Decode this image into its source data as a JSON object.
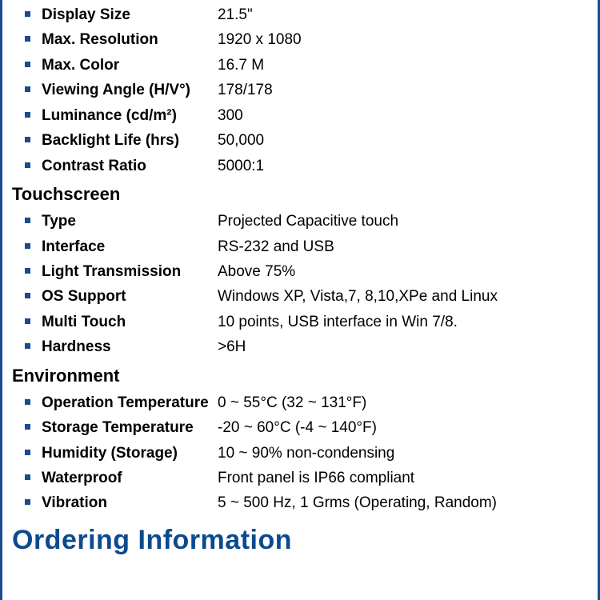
{
  "colors": {
    "border": "#1a4b8c",
    "bullet": "#1a4b8c",
    "heading_blue": "#0b4a8f",
    "text": "#000000",
    "background": "#ffffff"
  },
  "sections": {
    "display": {
      "items": [
        {
          "label": "Display Size",
          "value": "21.5\""
        },
        {
          "label": "Max. Resolution",
          "value": "1920 x 1080"
        },
        {
          "label": "Max. Color",
          "value": "16.7 M"
        },
        {
          "label": "Viewing Angle (H/V°)",
          "value": "178/178"
        },
        {
          "label": "Luminance (cd/m²)",
          "value": "300"
        },
        {
          "label": "Backlight Life (hrs)",
          "value": "50,000"
        },
        {
          "label": "Contrast Ratio",
          "value": "5000:1"
        }
      ]
    },
    "touchscreen": {
      "heading": "Touchscreen",
      "items": [
        {
          "label": "Type",
          "value": "Projected Capacitive touch"
        },
        {
          "label": "Interface",
          "value": "RS-232 and USB"
        },
        {
          "label": "Light Transmission",
          "value": "Above 75%"
        },
        {
          "label": "OS Support",
          "value": "Windows XP, Vista,7, 8,10,XPe and Linux"
        },
        {
          "label": "Multi Touch",
          "value": "10 points, USB interface in Win 7/8."
        },
        {
          "label": "Hardness",
          "value": ">6H"
        }
      ]
    },
    "environment": {
      "heading": "Environment",
      "items": [
        {
          "label": "Operation Temperature",
          "value": "0 ~ 55°C (32 ~ 131°F)"
        },
        {
          "label": "Storage Temperature",
          "value": "-20 ~ 60°C (-4 ~ 140°F)"
        },
        {
          "label": "Humidity (Storage)",
          "value": "10 ~ 90% non-condensing"
        },
        {
          "label": "Waterproof",
          "value": "Front panel is IP66 compliant"
        },
        {
          "label": "Vibration",
          "value": "5 ~ 500 Hz, 1 Grms (Operating, Random)"
        }
      ]
    }
  },
  "ordering_heading": "Ordering Information"
}
